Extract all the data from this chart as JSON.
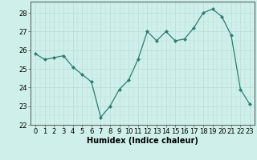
{
  "x": [
    0,
    1,
    2,
    3,
    4,
    5,
    6,
    7,
    8,
    9,
    10,
    11,
    12,
    13,
    14,
    15,
    16,
    17,
    18,
    19,
    20,
    21,
    22,
    23
  ],
  "y": [
    25.8,
    25.5,
    25.6,
    25.7,
    25.1,
    24.7,
    24.3,
    22.4,
    23.0,
    23.9,
    24.4,
    25.5,
    27.0,
    26.5,
    27.0,
    26.5,
    26.6,
    27.2,
    28.0,
    28.2,
    27.8,
    26.8,
    23.9,
    23.1
  ],
  "line_color": "#2e7d6e",
  "marker": "D",
  "marker_size": 2.0,
  "bg_color": "#cff0ea",
  "grid_color": "#b8ddd8",
  "xlabel": "Humidex (Indice chaleur)",
  "ylabel": "",
  "ylim": [
    22,
    28.6
  ],
  "xlim": [
    -0.5,
    23.5
  ],
  "yticks": [
    22,
    23,
    24,
    25,
    26,
    27,
    28
  ],
  "xticks": [
    0,
    1,
    2,
    3,
    4,
    5,
    6,
    7,
    8,
    9,
    10,
    11,
    12,
    13,
    14,
    15,
    16,
    17,
    18,
    19,
    20,
    21,
    22,
    23
  ],
  "axis_fontsize": 6,
  "xlabel_fontsize": 7,
  "lw": 0.9
}
